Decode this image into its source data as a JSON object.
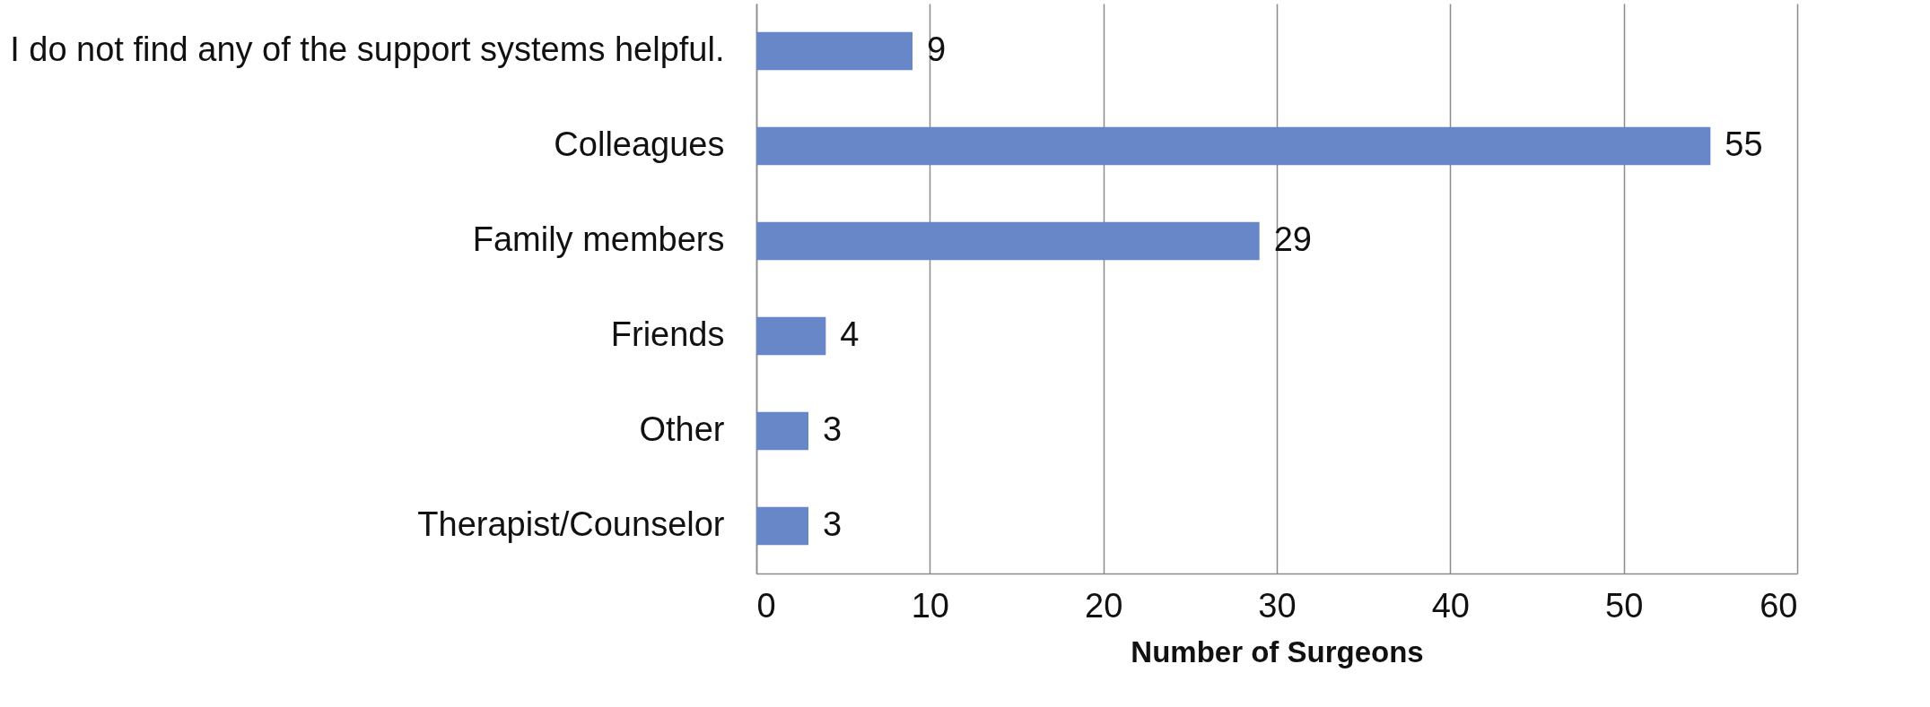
{
  "chart_data": {
    "type": "bar",
    "orientation": "horizontal",
    "xlabel": "Number of Surgeons",
    "categories": [
      "I do not find any of the support systems helpful.",
      "Colleagues",
      "Family members",
      "Friends",
      "Other",
      "Therapist/Counselor"
    ],
    "values": [
      9,
      55,
      29,
      4,
      3,
      3
    ],
    "color": "#6787c9",
    "xlim": [
      0,
      60
    ],
    "xticks": [
      0,
      10,
      20,
      30,
      40,
      50,
      60
    ],
    "grid": "x",
    "data_labels": true
  }
}
